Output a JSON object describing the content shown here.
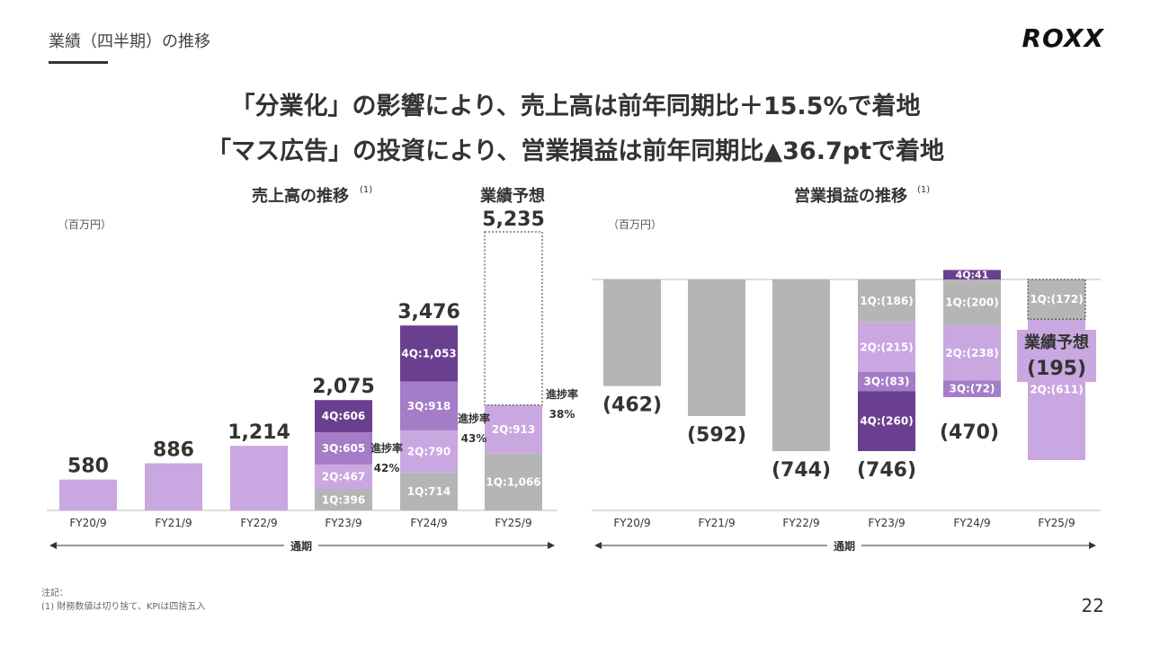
{
  "header": {
    "section_title": "業績（四半期）の推移",
    "logo_text": "ROXX",
    "headline_1": "「分業化」の影響により、売上高は前年同期比＋15.5%で着地",
    "headline_2": "「マス広告」の投資により、営業損益は前年同期比▲36.7ptで着地"
  },
  "colors": {
    "light_purple": "#c9a7e0",
    "mid_purple": "#a57cc7",
    "dark_purple": "#6b3f8f",
    "gray": "#b5b5b5",
    "text": "#333333"
  },
  "chart_data": [
    {
      "type": "bar",
      "stacked": true,
      "title": "売上高の推移",
      "title_superscript": "(1)",
      "unit_label": "（百万円）",
      "categories": [
        "FY20/9",
        "FY21/9",
        "FY22/9",
        "FY23/9",
        "FY24/9",
        "FY25/9"
      ],
      "period_label": "通期",
      "totals": [
        "580",
        "886",
        "1,214",
        "2,075",
        "3,476",
        "5,235"
      ],
      "forecast_label": "業績予想",
      "ylim": [
        0,
        5235
      ],
      "bars": [
        {
          "category": "FY20/9",
          "total": 580,
          "segments": [
            {
              "value": 580,
              "color": "light",
              "label": ""
            }
          ]
        },
        {
          "category": "FY21/9",
          "total": 886,
          "segments": [
            {
              "value": 886,
              "color": "light",
              "label": ""
            }
          ]
        },
        {
          "category": "FY22/9",
          "total": 1214,
          "segments": [
            {
              "value": 1214,
              "color": "light",
              "label": ""
            }
          ]
        },
        {
          "category": "FY23/9",
          "total": 2075,
          "segments": [
            {
              "value": 396,
              "color": "gray",
              "label": "1Q:396"
            },
            {
              "value": 467,
              "color": "light",
              "label": "2Q:467"
            },
            {
              "value": 605,
              "color": "mid",
              "label": "3Q:605"
            },
            {
              "value": 606,
              "color": "dark",
              "label": "4Q:606"
            }
          ]
        },
        {
          "category": "FY24/9",
          "total": 3476,
          "segments": [
            {
              "value": 714,
              "color": "gray",
              "label": "1Q:714"
            },
            {
              "value": 790,
              "color": "light",
              "label": "2Q:790"
            },
            {
              "value": 918,
              "color": "mid",
              "label": "3Q:918"
            },
            {
              "value": 1053,
              "color": "dark",
              "label": "4Q:1,053"
            }
          ]
        },
        {
          "category": "FY25/9",
          "total": 5235,
          "forecast": true,
          "segments": [
            {
              "value": 1066,
              "color": "gray",
              "label": "1Q:1,066"
            },
            {
              "value": 913,
              "color": "light",
              "label": "2Q:913"
            }
          ]
        }
      ],
      "progress": [
        {
          "label": "進捗率",
          "value": "42%"
        },
        {
          "label": "進捗率",
          "value": "43%"
        },
        {
          "label": "進捗率",
          "value": "38%"
        }
      ]
    },
    {
      "type": "bar",
      "stacked": true,
      "title": "営業損益の推移",
      "title_superscript": "(1)",
      "unit_label": "（百万円）",
      "categories": [
        "FY20/9",
        "FY21/9",
        "FY22/9",
        "FY23/9",
        "FY24/9",
        "FY25/9"
      ],
      "period_label": "通期",
      "totals": [
        "(462)",
        "(592)",
        "(744)",
        "(746)",
        "(470)",
        "(195)"
      ],
      "forecast_label": "業績予想",
      "bars": [
        {
          "category": "FY20/9",
          "total": -462,
          "segments": [
            {
              "value": -462,
              "color": "gray",
              "label": ""
            }
          ]
        },
        {
          "category": "FY21/9",
          "total": -592,
          "segments": [
            {
              "value": -592,
              "color": "gray",
              "label": ""
            }
          ]
        },
        {
          "category": "FY22/9",
          "total": -744,
          "segments": [
            {
              "value": -744,
              "color": "gray",
              "label": ""
            }
          ]
        },
        {
          "category": "FY23/9",
          "total": -746,
          "segments": [
            {
              "value": -186,
              "color": "gray",
              "label": "1Q:(186)"
            },
            {
              "value": -215,
              "color": "light",
              "label": "2Q:(215)"
            },
            {
              "value": -83,
              "color": "mid",
              "label": "3Q:(83)"
            },
            {
              "value": -260,
              "color": "dark",
              "label": "4Q:(260)"
            }
          ]
        },
        {
          "category": "FY24/9",
          "total": -470,
          "segments": [
            {
              "value": 41,
              "color": "dark",
              "label": "4Q:41"
            },
            {
              "value": -200,
              "color": "gray",
              "label": "1Q:(200)"
            },
            {
              "value": -238,
              "color": "light",
              "label": "2Q:(238)"
            },
            {
              "value": -72,
              "color": "mid",
              "label": "3Q:(72)"
            }
          ]
        },
        {
          "category": "FY25/9",
          "total": -195,
          "forecast": true,
          "segments": [
            {
              "value": -172,
              "color": "gray",
              "label": "1Q:(172)"
            },
            {
              "value": -611,
              "color": "light",
              "label": "2Q:(611)"
            }
          ]
        }
      ]
    }
  ],
  "footnotes": {
    "line_1": "注記：",
    "line_2": "(1) 財務数値は切り捨て、KPIは四捨五入"
  },
  "page_number": "22"
}
